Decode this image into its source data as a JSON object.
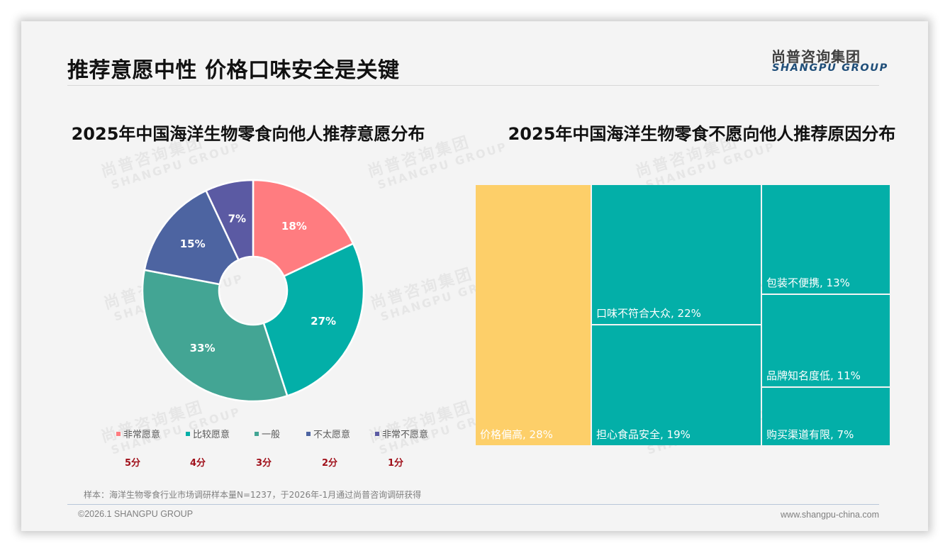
{
  "header": {
    "title": "推荐意愿中性 价格口味安全是关键",
    "logo_cn": "尚普咨询集团",
    "logo_en": "SHANGPU GROUP"
  },
  "watermark": {
    "cn": "尚普咨询集团",
    "en": "SHANGPU GROUP"
  },
  "left_chart": {
    "title": "2025年中国海洋生物零食向他人推荐意愿分布",
    "slices": [
      {
        "label": "非常愿意",
        "value": 18,
        "display": "18%",
        "color": "#ff7c80",
        "score": "5分"
      },
      {
        "label": "比较愿意",
        "value": 27,
        "display": "27%",
        "color": "#03afa8",
        "score": "4分"
      },
      {
        "label": "一般",
        "value": 33,
        "display": "33%",
        "color": "#43a594",
        "score": "3分"
      },
      {
        "label": "不太愿意",
        "value": 15,
        "display": "15%",
        "color": "#4d64a1",
        "score": "2分"
      },
      {
        "label": "非常不愿意",
        "value": 7,
        "display": "7%",
        "color": "#5b5aa3",
        "score": "1分"
      }
    ]
  },
  "right_chart": {
    "title": "2025年中国海洋生物零食不愿向他人推荐原因分布",
    "items": [
      {
        "label": "价格偏高, 28%",
        "name": "价格偏高",
        "value": 28,
        "color": "#fdcf69"
      },
      {
        "label": "口味不符合大众, 22%",
        "name": "口味不符合大众",
        "value": 22,
        "color": "#03afa8"
      },
      {
        "label": "担心食品安全, 19%",
        "name": "担心食品安全",
        "value": 19,
        "color": "#03afa8"
      },
      {
        "label": "包装不便携, 13%",
        "name": "包装不便携",
        "value": 13,
        "color": "#03afa8"
      },
      {
        "label": "品牌知名度低, 11%",
        "name": "品牌知名度低",
        "value": 11,
        "color": "#03afa8"
      },
      {
        "label": "购买渠道有限, 7%",
        "name": "购买渠道有限",
        "value": 7,
        "color": "#03afa8"
      }
    ]
  },
  "footer": {
    "note": "样本：海洋生物零食行业市场调研样本量N=1237，于2026年-1月通过尚普咨询调研获得",
    "copyright": "©2026.1 SHANGPU GROUP",
    "website": "www.shangpu-china.com"
  },
  "chart_data": [
    {
      "type": "pie",
      "title": "2025年中国海洋生物零食向他人推荐意愿分布",
      "donut": true,
      "categories": [
        "非常愿意",
        "比较愿意",
        "一般",
        "不太愿意",
        "非常不愿意"
      ],
      "values": [
        18,
        27,
        33,
        15,
        7
      ],
      "unit": "%",
      "scores": [
        "5分",
        "4分",
        "3分",
        "2分",
        "1分"
      ],
      "colors": [
        "#ff7c80",
        "#03afa8",
        "#43a594",
        "#4d64a1",
        "#5b5aa3"
      ],
      "legend_position": "bottom"
    },
    {
      "type": "treemap",
      "title": "2025年中国海洋生物零食不愿向他人推荐原因分布",
      "categories": [
        "价格偏高",
        "口味不符合大众",
        "担心食品安全",
        "包装不便携",
        "品牌知名度低",
        "购买渠道有限"
      ],
      "values": [
        28,
        22,
        19,
        13,
        11,
        7
      ],
      "unit": "%"
    }
  ]
}
